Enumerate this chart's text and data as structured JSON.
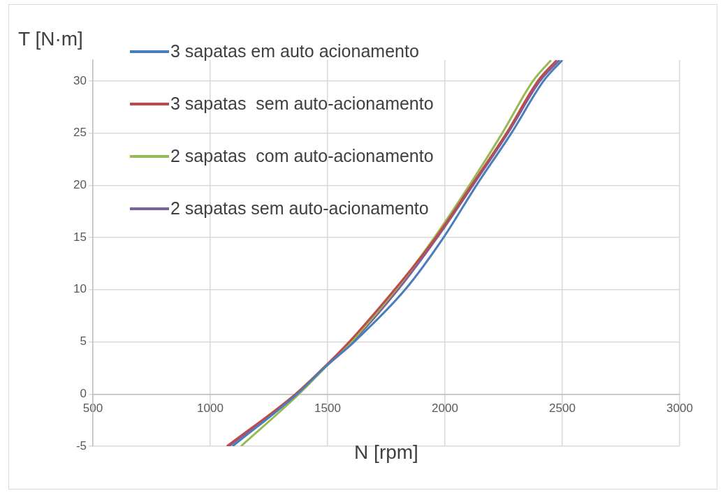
{
  "chart_data": {
    "type": "line",
    "xlabel": "N [rpm]",
    "ylabel": "T [N·m]",
    "xlim": [
      500,
      3000
    ],
    "xticks": [
      500,
      1000,
      1500,
      2000,
      2500,
      3000
    ],
    "ylim": [
      -5,
      32
    ],
    "yticks": [
      -5,
      0,
      5,
      10,
      15,
      20,
      25,
      30
    ],
    "grid": true,
    "legend": "top left",
    "marker": "none",
    "series": [
      {
        "name": "3 sapatas em auto acionamento",
        "color": "#4a7ebb",
        "x": [
          1095,
          1370,
          1485,
          1613,
          1830,
          1994,
          2134,
          2283,
          2420,
          2500
        ],
        "values": [
          -5,
          0,
          2.5,
          5,
          10,
          15,
          20,
          25,
          30,
          32
        ]
      },
      {
        "name": "3 sapatas  sem auto-acionamento",
        "color": "#be4b48",
        "x": [
          1071,
          1363,
          1482,
          1592,
          1785,
          1961,
          2113,
          2262,
          2396,
          2476
        ],
        "values": [
          -5,
          0,
          2.5,
          5,
          10,
          15,
          20,
          25,
          30,
          32
        ]
      },
      {
        "name": "2 sapatas  com auto-acionamento",
        "color": "#98b954",
        "x": [
          1131,
          1378,
          1488,
          1600,
          1790,
          1955,
          2104,
          2244,
          2375,
          2452
        ],
        "values": [
          -5,
          0,
          2.5,
          5,
          10,
          15,
          20,
          25,
          30,
          32
        ]
      },
      {
        "name": "2 sapatas sem auto-acionamento",
        "color": "#7d60a0",
        "x": [
          1080,
          1366,
          1484,
          1605,
          1800,
          1967,
          2119,
          2268,
          2405,
          2488
        ],
        "values": [
          -5,
          0,
          2.5,
          5,
          10,
          15,
          20,
          25,
          30,
          32
        ]
      }
    ]
  }
}
